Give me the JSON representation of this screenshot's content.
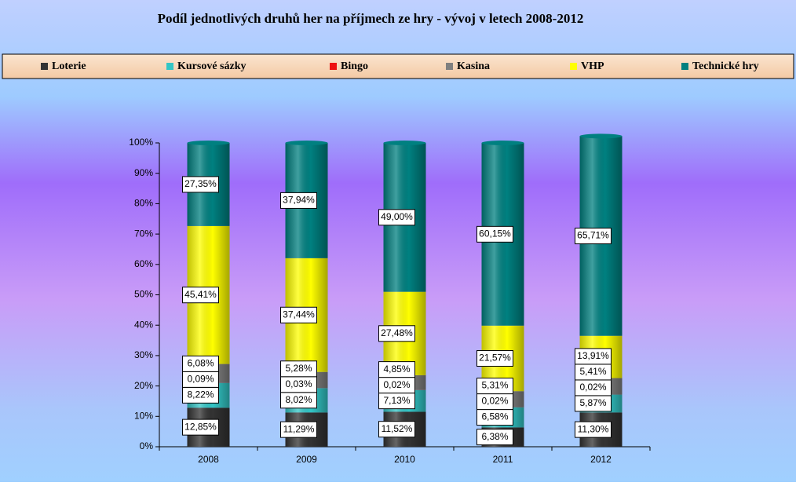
{
  "chart_data": {
    "type": "stacked-bar",
    "title": "Podíl jednotlivých druhů her na příjmech ze hry - vývoj v letech 2008-2012",
    "categories": [
      "2008",
      "2009",
      "2010",
      "2011",
      "2012"
    ],
    "series": [
      {
        "name": "Loterie",
        "color": "#333333",
        "values": [
          12.85,
          11.29,
          11.52,
          6.38,
          11.3
        ],
        "value_labels": [
          "12,85%",
          "11,29%",
          "11,52%",
          "6,38%",
          "11,30%"
        ]
      },
      {
        "name": "Kursové sázky",
        "color": "#33c6c6",
        "values": [
          8.22,
          8.02,
          7.13,
          6.58,
          5.87
        ],
        "value_labels": [
          "8,22%",
          "8,02%",
          "7,13%",
          "6,58%",
          "5,87%"
        ]
      },
      {
        "name": "Bingo",
        "color": "#ee1111",
        "values": [
          0.09,
          0.03,
          0.02,
          0.02,
          0.02
        ],
        "value_labels": [
          "0,09%",
          "0,03%",
          "0,02%",
          "0,02%",
          "0,02%"
        ]
      },
      {
        "name": "Kasina",
        "color": "#808080",
        "values": [
          6.08,
          5.28,
          4.85,
          5.31,
          5.41
        ],
        "value_labels": [
          "6,08%",
          "5,28%",
          "4,85%",
          "5,31%",
          "5,41%"
        ]
      },
      {
        "name": "VHP",
        "color": "#ffff00",
        "values": [
          45.41,
          37.44,
          27.48,
          21.57,
          13.91
        ],
        "value_labels": [
          "45,41%",
          "37,44%",
          "27,48%",
          "21,57%",
          "13,91%"
        ]
      },
      {
        "name": "Technické hry",
        "color": "#008080",
        "values": [
          27.35,
          37.94,
          49.0,
          60.15,
          65.71
        ],
        "value_labels": [
          "27,35%",
          "37,94%",
          "49,00%",
          "60,15%",
          "65,71%"
        ]
      }
    ],
    "ylim": [
      0,
      100
    ],
    "yticks": [
      {
        "value": 0,
        "label": "0%"
      },
      {
        "value": 10,
        "label": "10%"
      },
      {
        "value": 20,
        "label": "20%"
      },
      {
        "value": 30,
        "label": "30%"
      },
      {
        "value": 40,
        "label": "40%"
      },
      {
        "value": 50,
        "label": "50%"
      },
      {
        "value": 60,
        "label": "60%"
      },
      {
        "value": 70,
        "label": "70%"
      },
      {
        "value": 80,
        "label": "80%"
      },
      {
        "value": 90,
        "label": "90%"
      },
      {
        "value": 100,
        "label": "100%"
      }
    ],
    "legend": "top"
  }
}
